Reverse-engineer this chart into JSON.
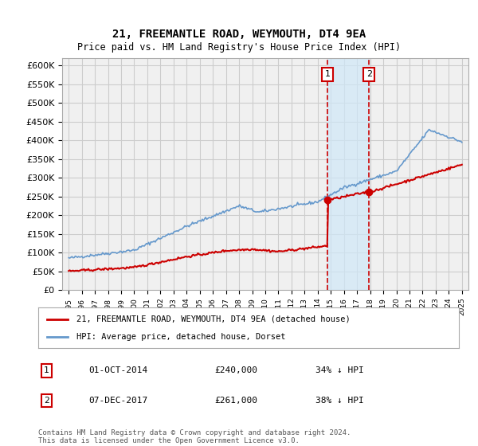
{
  "title": "21, FREEMANTLE ROAD, WEYMOUTH, DT4 9EA",
  "subtitle": "Price paid vs. HM Land Registry's House Price Index (HPI)",
  "ylabel": "",
  "ylim": [
    0,
    620000
  ],
  "yticks": [
    0,
    50000,
    100000,
    150000,
    200000,
    250000,
    300000,
    350000,
    400000,
    450000,
    500000,
    550000,
    600000
  ],
  "background_color": "#ffffff",
  "grid_color": "#cccccc",
  "plot_bg": "#f0f0f0",
  "sale1": {
    "date_num": 2014.75,
    "price": 240000,
    "label": "1"
  },
  "sale2": {
    "date_num": 2017.92,
    "price": 261000,
    "label": "2"
  },
  "shade_color": "#d0e8f8",
  "vline_color": "#cc0000",
  "legend_label_red": "21, FREEMANTLE ROAD, WEYMOUTH, DT4 9EA (detached house)",
  "legend_label_blue": "HPI: Average price, detached house, Dorset",
  "table_entries": [
    {
      "num": "1",
      "date": "01-OCT-2014",
      "price": "£240,000",
      "pct": "34% ↓ HPI"
    },
    {
      "num": "2",
      "date": "07-DEC-2017",
      "price": "£261,000",
      "pct": "38% ↓ HPI"
    }
  ],
  "footer": "Contains HM Land Registry data © Crown copyright and database right 2024.\nThis data is licensed under the Open Government Licence v3.0.",
  "red_color": "#cc0000",
  "blue_color": "#6699cc"
}
